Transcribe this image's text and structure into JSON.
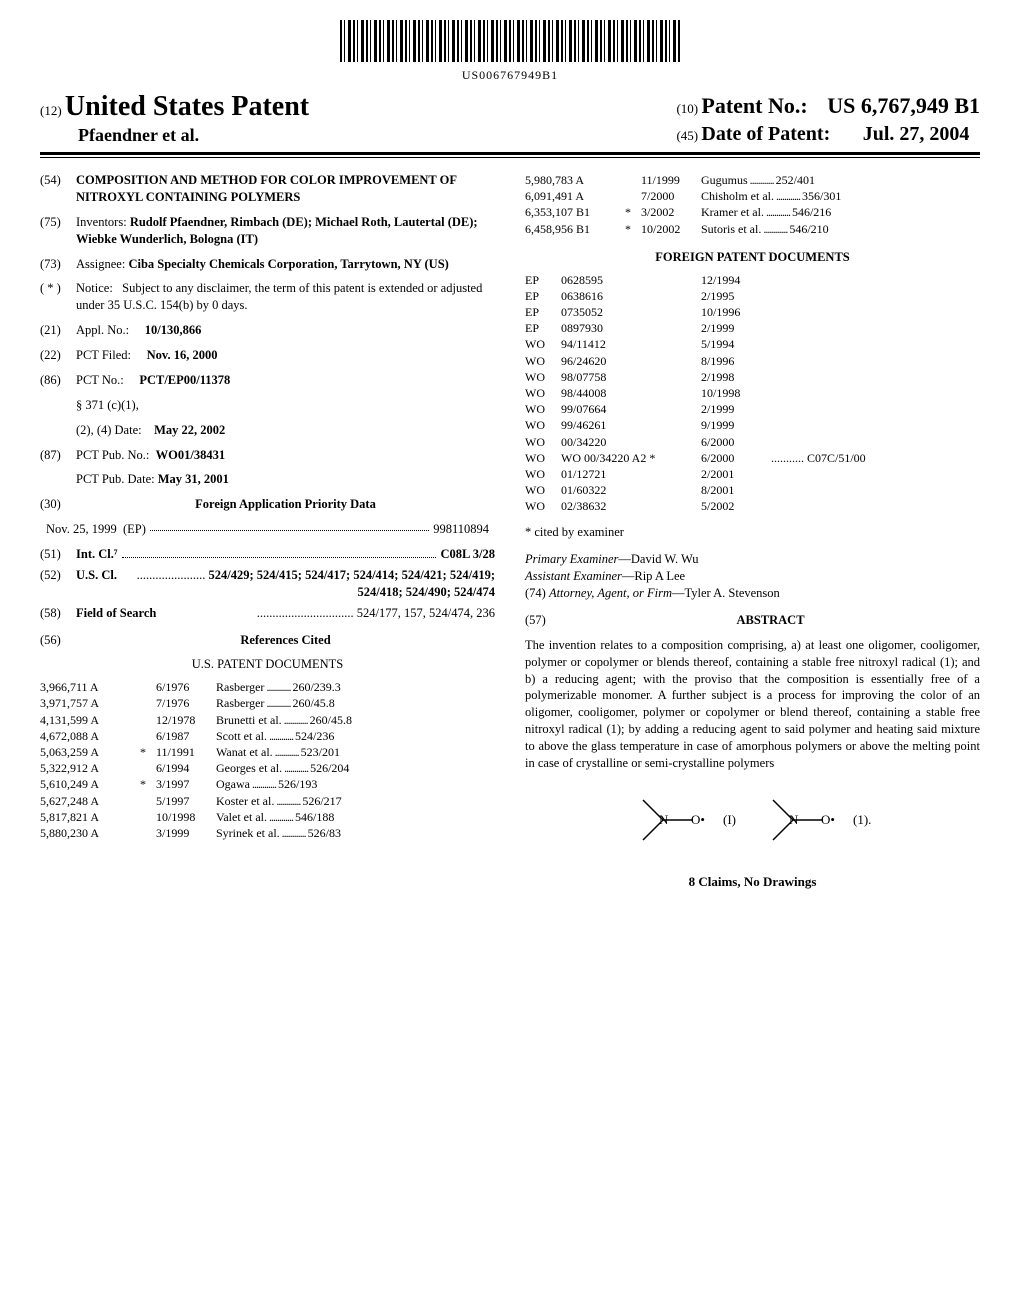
{
  "barcode_text": "US006767949B1",
  "header": {
    "left_prefix": "(12)",
    "left_title": "United States Patent",
    "inventors_line": "Pfaendner et al.",
    "right_patno_prefix": "(10)",
    "right_patno_label": "Patent No.:",
    "right_patno_value": "US 6,767,949 B1",
    "right_dop_prefix": "(45)",
    "right_dop_label": "Date of Patent:",
    "right_dop_value": "Jul. 27, 2004"
  },
  "left_fields": {
    "f54_num": "(54)",
    "f54_text": "COMPOSITION AND METHOD FOR COLOR IMPROVEMENT OF NITROXYL CONTAINING POLYMERS",
    "f75_num": "(75)",
    "f75_label": "Inventors:",
    "f75_text": "Rudolf Pfaendner, Rimbach (DE); Michael Roth, Lautertal (DE); Wiebke Wunderlich, Bologna (IT)",
    "f73_num": "(73)",
    "f73_label": "Assignee:",
    "f73_text": "Ciba Specialty Chemicals Corporation, Tarrytown, NY (US)",
    "fstar_num": "( * )",
    "fstar_label": "Notice:",
    "fstar_text": "Subject to any disclaimer, the term of this patent is extended or adjusted under 35 U.S.C. 154(b) by 0 days.",
    "f21_num": "(21)",
    "f21_label": "Appl. No.:",
    "f21_value": "10/130,866",
    "f22_num": "(22)",
    "f22_label": "PCT Filed:",
    "f22_value": "Nov. 16, 2000",
    "f86_num": "(86)",
    "f86_label": "PCT No.:",
    "f86_value": "PCT/EP00/11378",
    "f86_sub1": "§ 371 (c)(1),",
    "f86_sub2_label": "(2), (4) Date:",
    "f86_sub2_value": "May 22, 2002",
    "f87_num": "(87)",
    "f87_label": "PCT Pub. No.:",
    "f87_value": "WO01/38431",
    "f87_sub_label": "PCT Pub. Date:",
    "f87_sub_value": "May 31, 2001",
    "f30_num": "(30)",
    "f30_label": "Foreign Application Priority Data",
    "f30_date": "Nov. 25, 1999",
    "f30_cc": "(EP)",
    "f30_app": "998110894",
    "f51_num": "(51)",
    "f51_label": "Int. Cl.⁷",
    "f51_value": "C08L 3/28",
    "f52_num": "(52)",
    "f52_label": "U.S. Cl.",
    "f52_value": "524/429; 524/415; 524/417; 524/414; 524/421; 524/419; 524/418; 524/490; 524/474",
    "f58_num": "(58)",
    "f58_label": "Field of Search",
    "f58_value": "524/177, 157, 524/474, 236",
    "f56_num": "(56)",
    "f56_label": "References Cited",
    "us_pat_head": "U.S. PATENT DOCUMENTS"
  },
  "us_patents_left": [
    {
      "no": "3,966,711 A",
      "mark": "",
      "date": "6/1976",
      "rest": "Rasberger",
      "cls": "260/239.3"
    },
    {
      "no": "3,971,757 A",
      "mark": "",
      "date": "7/1976",
      "rest": "Rasberger",
      "cls": "260/45.8"
    },
    {
      "no": "4,131,599 A",
      "mark": "",
      "date": "12/1978",
      "rest": "Brunetti et al.",
      "cls": "260/45.8"
    },
    {
      "no": "4,672,088 A",
      "mark": "",
      "date": "6/1987",
      "rest": "Scott et al.",
      "cls": "524/236"
    },
    {
      "no": "5,063,259 A",
      "mark": "*",
      "date": "11/1991",
      "rest": "Wanat et al.",
      "cls": "523/201"
    },
    {
      "no": "5,322,912 A",
      "mark": "",
      "date": "6/1994",
      "rest": "Georges et al.",
      "cls": "526/204"
    },
    {
      "no": "5,610,249 A",
      "mark": "*",
      "date": "3/1997",
      "rest": "Ogawa",
      "cls": "526/193"
    },
    {
      "no": "5,627,248 A",
      "mark": "",
      "date": "5/1997",
      "rest": "Koster et al.",
      "cls": "526/217"
    },
    {
      "no": "5,817,821 A",
      "mark": "",
      "date": "10/1998",
      "rest": "Valet et al.",
      "cls": "546/188"
    },
    {
      "no": "5,880,230 A",
      "mark": "",
      "date": "3/1999",
      "rest": "Syrinek et al.",
      "cls": "526/83"
    }
  ],
  "us_patents_right": [
    {
      "no": "5,980,783 A",
      "mark": "",
      "date": "11/1999",
      "rest": "Gugumus",
      "cls": "252/401"
    },
    {
      "no": "6,091,491 A",
      "mark": "",
      "date": "7/2000",
      "rest": "Chisholm et al.",
      "cls": "356/301"
    },
    {
      "no": "6,353,107 B1",
      "mark": "*",
      "date": "3/2002",
      "rest": "Kramer et al.",
      "cls": "546/216"
    },
    {
      "no": "6,458,956 B1",
      "mark": "*",
      "date": "10/2002",
      "rest": "Sutoris et al.",
      "cls": "546/210"
    }
  ],
  "foreign_head": "FOREIGN PATENT DOCUMENTS",
  "foreign_patents": [
    {
      "cc": "EP",
      "no": "0628595",
      "date": "12/1994",
      "cls": ""
    },
    {
      "cc": "EP",
      "no": "0638616",
      "date": "2/1995",
      "cls": ""
    },
    {
      "cc": "EP",
      "no": "0735052",
      "date": "10/1996",
      "cls": ""
    },
    {
      "cc": "EP",
      "no": "0897930",
      "date": "2/1999",
      "cls": ""
    },
    {
      "cc": "WO",
      "no": "94/11412",
      "date": "5/1994",
      "cls": ""
    },
    {
      "cc": "WO",
      "no": "96/24620",
      "date": "8/1996",
      "cls": ""
    },
    {
      "cc": "WO",
      "no": "98/07758",
      "date": "2/1998",
      "cls": ""
    },
    {
      "cc": "WO",
      "no": "98/44008",
      "date": "10/1998",
      "cls": ""
    },
    {
      "cc": "WO",
      "no": "99/07664",
      "date": "2/1999",
      "cls": ""
    },
    {
      "cc": "WO",
      "no": "99/46261",
      "date": "9/1999",
      "cls": ""
    },
    {
      "cc": "WO",
      "no": "00/34220",
      "date": "6/2000",
      "cls": ""
    },
    {
      "cc": "WO",
      "no": "WO 00/34220 A2 *",
      "date": "6/2000",
      "cls": "C07C/51/00"
    },
    {
      "cc": "WO",
      "no": "01/12721",
      "date": "2/2001",
      "cls": ""
    },
    {
      "cc": "WO",
      "no": "01/60322",
      "date": "8/2001",
      "cls": ""
    },
    {
      "cc": "WO",
      "no": "02/38632",
      "date": "5/2002",
      "cls": ""
    }
  ],
  "cited_note": "* cited by examiner",
  "examiner": {
    "primary_label": "Primary Examiner",
    "primary_value": "—David W. Wu",
    "assistant_label": "Assistant Examiner",
    "assistant_value": "—Rip A Lee",
    "attorney_num": "(74)",
    "attorney_label": "Attorney, Agent, or Firm",
    "attorney_value": "—Tyler A. Stevenson"
  },
  "abstract": {
    "num": "(57)",
    "head": "ABSTRACT",
    "text": "The invention relates to a composition comprising, a) at least one oligomer, cooligomer, polymer or copolymer or blends thereof, containing a stable free nitroxyl radical (1); and b) a reducing agent; with the proviso that the composition is essentially free of a polymerizable monomer. A further subject is a process for improving the color of an oligomer, cooligomer, polymer or copolymer or blend thereof, containing a stable free nitroxyl radical (1); by adding a reducing agent to said polymer and heating said mixture to above the glass temperature in case of amorphous polymers or above the melting point in case of crystalline or semi-crystalline polymers"
  },
  "formula": {
    "label_I": "(I)",
    "label_1": "(1)."
  },
  "claims_line": "8 Claims, No Drawings"
}
